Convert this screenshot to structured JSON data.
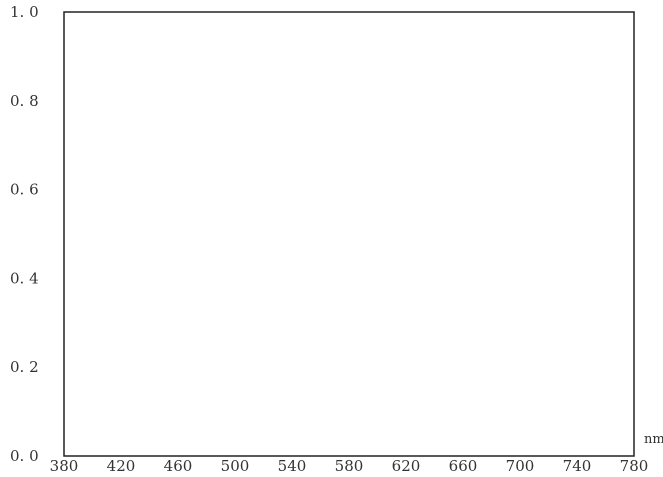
{
  "chart_data": {
    "type": "line",
    "title": "",
    "xlabel": "",
    "ylabel": "",
    "x_unit": "nm",
    "xlim": [
      380,
      780
    ],
    "ylim": [
      0.0,
      1.0
    ],
    "x_ticks": [
      380,
      420,
      460,
      500,
      540,
      580,
      620,
      660,
      700,
      740,
      780
    ],
    "x_tick_labels": [
      "380",
      "420",
      "460",
      "500",
      "540",
      "580",
      "620",
      "660",
      "700",
      "740",
      "780"
    ],
    "y_ticks": [
      0.0,
      0.2,
      0.4,
      0.6,
      0.8,
      1.0
    ],
    "y_tick_labels": [
      "0. 0",
      "0. 2",
      "0. 4",
      "0. 6",
      "0. 8",
      "1. 0"
    ],
    "grid": false,
    "series": [],
    "colors": {
      "axis": "#222222",
      "text": "#333333",
      "background": "#ffffff"
    }
  }
}
